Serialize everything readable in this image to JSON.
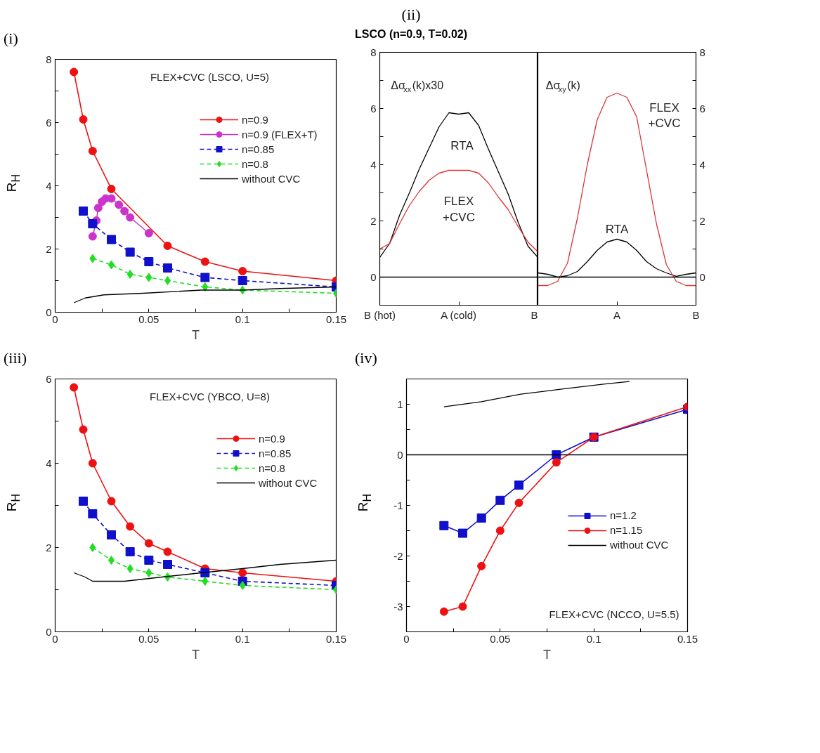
{
  "chart_data": [
    {
      "type": "line",
      "title": "(i)",
      "xlabel": "T",
      "ylabel": "R$_{H}$",
      "xlim": [
        0,
        0.15
      ],
      "ylim": [
        0,
        8
      ],
      "xticks": [
        0,
        {
          "value": 0.025,
          "label": null
        },
        0.05,
        {
          "value": 0.075,
          "label": null
        },
        0.1,
        {
          "value": 0.125,
          "label": null
        },
        0.15
      ],
      "yticks": [
        0,
        {
          "value": 1,
          "label": null
        },
        2,
        {
          "value": 3,
          "label": null
        },
        4,
        {
          "value": 5,
          "label": null
        },
        6,
        {
          "value": 7,
          "label": null
        },
        8
      ],
      "annotations": [
        "FLEX+CVC (LSCO, U=5)"
      ],
      "legend": "top right",
      "series": [
        {
          "name": "n=0.9",
          "color": "#ee1111",
          "marker": "circle",
          "line_style": "solid",
          "x": [
            0.01,
            0.015,
            0.02,
            0.03,
            0.06,
            0.08,
            0.1,
            0.15
          ],
          "values": [
            7.6,
            6.1,
            5.1,
            3.9,
            2.1,
            1.6,
            1.3,
            1.0
          ]
        },
        {
          "name": "n=0.9 (FLEX+T)",
          "color": "#cc33cc",
          "marker": "circle",
          "line_style": "solid",
          "x": [
            0.02,
            0.022,
            0.023,
            0.025,
            0.027,
            0.03,
            0.034,
            0.037,
            0.04,
            0.05
          ],
          "values": [
            2.4,
            2.9,
            3.3,
            3.5,
            3.6,
            3.6,
            3.4,
            3.2,
            3.0,
            2.5
          ]
        },
        {
          "name": "n=0.85",
          "color": "#1010cc",
          "marker": "square",
          "line_style": "dashed",
          "x": [
            0.015,
            0.02,
            0.03,
            0.04,
            0.05,
            0.06,
            0.08,
            0.1,
            0.15
          ],
          "values": [
            3.2,
            2.8,
            2.3,
            1.9,
            1.6,
            1.4,
            1.1,
            1.0,
            0.8
          ]
        },
        {
          "name": "n=0.8",
          "color": "#22dd22",
          "marker": "diamond",
          "line_style": "dashed",
          "x": [
            0.02,
            0.03,
            0.04,
            0.05,
            0.06,
            0.08,
            0.1,
            0.15
          ],
          "values": [
            1.7,
            1.5,
            1.2,
            1.1,
            1.0,
            0.8,
            0.7,
            0.6
          ]
        },
        {
          "name": "without CVC",
          "color": "#000000",
          "marker": "none",
          "line_style": "solid",
          "x": [
            0.01,
            0.016,
            0.026,
            0.047,
            0.078,
            0.1,
            0.12,
            0.15
          ],
          "values": [
            0.3,
            0.45,
            0.55,
            0.6,
            0.7,
            0.7,
            0.75,
            0.8
          ]
        }
      ]
    },
    {
      "type": "line",
      "title": "(ii)",
      "subtitle": "LSCO (n=0.9, T=0.02)",
      "ylim": [
        -1,
        8
      ],
      "categories": [
        "B (hot)",
        null,
        null,
        null,
        null,
        null,
        null,
        null,
        "A (cold)",
        null,
        null,
        null,
        null,
        null,
        null,
        null,
        "B"
      ],
      "yticks": [
        0,
        {
          "value": 1,
          "label": null
        },
        2,
        {
          "value": 3,
          "label": null
        },
        4,
        {
          "value": 5,
          "label": null
        },
        6,
        {
          "value": 7,
          "label": null
        },
        8
      ],
      "ref_lines": [
        {
          "axis": "y",
          "value": 0,
          "color": "#000000"
        }
      ],
      "annotations": [
        "Δσ$_{xx}$(k)x30",
        "RTA",
        "FLEX\n+CVC"
      ],
      "series": [
        {
          "color": "#000000",
          "values": [
            0.7,
            1.2,
            2.2,
            3.0,
            3.85,
            4.6,
            5.35,
            5.85,
            5.8,
            5.85,
            5.4,
            4.55,
            3.75,
            2.95,
            1.95,
            1.1,
            0.7
          ]
        },
        {
          "color": "#dd3333",
          "values": [
            1.0,
            1.2,
            1.9,
            2.55,
            3.05,
            3.45,
            3.7,
            3.8,
            3.8,
            3.8,
            3.7,
            3.35,
            2.85,
            2.4,
            1.8,
            1.25,
            0.9
          ]
        }
      ]
    },
    {
      "type": "line",
      "ylim": [
        -1,
        8
      ],
      "categories": [
        null,
        null,
        null,
        null,
        null,
        null,
        null,
        null,
        "A",
        null,
        null,
        null,
        null,
        null,
        null,
        null,
        "B"
      ],
      "yticks": [
        0,
        {
          "value": 1,
          "label": null
        },
        2,
        {
          "value": 3,
          "label": null
        },
        4,
        {
          "value": 5,
          "label": null
        },
        6,
        {
          "value": 7,
          "label": null
        },
        8
      ],
      "ref_lines": [
        {
          "axis": "y",
          "value": 0,
          "color": "#000000"
        }
      ],
      "annotations": [
        "Δσ$_{xy}$(k)",
        "FLEX\n+CVC",
        "RTA"
      ],
      "series": [
        {
          "color": "#000000",
          "values": [
            0.15,
            0.1,
            0.0,
            0.05,
            0.2,
            0.55,
            0.95,
            1.25,
            1.35,
            1.25,
            0.95,
            0.55,
            0.3,
            0.15,
            0.03,
            0.1,
            0.15
          ]
        },
        {
          "color": "#dd3333",
          "values": [
            -0.3,
            -0.3,
            -0.15,
            0.5,
            2.1,
            4.0,
            5.6,
            6.4,
            6.55,
            6.4,
            5.7,
            3.8,
            1.9,
            0.45,
            -0.15,
            -0.3,
            -0.3
          ]
        }
      ]
    },
    {
      "type": "line",
      "title": "(iii)",
      "xlabel": "T",
      "ylabel": "R$_{H}$",
      "xlim": [
        0,
        0.15
      ],
      "ylim": [
        0,
        6
      ],
      "xticks": [
        0,
        {
          "value": 0.025,
          "label": null
        },
        0.05,
        {
          "value": 0.075,
          "label": null
        },
        0.1,
        {
          "value": 0.125,
          "label": null
        },
        0.15
      ],
      "yticks": [
        0,
        {
          "value": 1,
          "label": null
        },
        2,
        {
          "value": 3,
          "label": null
        },
        4,
        {
          "value": 5,
          "label": null
        },
        6
      ],
      "annotations": [
        "FLEX+CVC (YBCO, U=8)"
      ],
      "legend": "top right",
      "series": [
        {
          "name": "n=0.9",
          "color": "#ee1111",
          "marker": "circle",
          "line_style": "solid",
          "x": [
            0.01,
            0.015,
            0.02,
            0.03,
            0.04,
            0.05,
            0.06,
            0.08,
            0.1,
            0.15
          ],
          "values": [
            5.8,
            4.8,
            4.0,
            3.1,
            2.5,
            2.1,
            1.9,
            1.5,
            1.4,
            1.2
          ]
        },
        {
          "name": "n=0.85",
          "color": "#1010cc",
          "marker": "square",
          "line_style": "dashed",
          "x": [
            0.015,
            0.02,
            0.03,
            0.04,
            0.05,
            0.06,
            0.08,
            0.1,
            0.15
          ],
          "values": [
            3.1,
            2.8,
            2.3,
            1.9,
            1.7,
            1.6,
            1.4,
            1.2,
            1.1
          ]
        },
        {
          "name": "n=0.8",
          "color": "#22dd22",
          "marker": "diamond",
          "line_style": "dashed",
          "x": [
            0.02,
            0.03,
            0.04,
            0.05,
            0.06,
            0.08,
            0.1,
            0.15
          ],
          "values": [
            2.0,
            1.7,
            1.5,
            1.4,
            1.3,
            1.2,
            1.1,
            1.0
          ]
        },
        {
          "name": "without CVC",
          "color": "#000000",
          "marker": "none",
          "line_style": "solid",
          "x": [
            0.01,
            0.016,
            0.02,
            0.037,
            0.057,
            0.078,
            0.1,
            0.12,
            0.15
          ],
          "values": [
            1.4,
            1.3,
            1.2,
            1.2,
            1.3,
            1.4,
            1.5,
            1.6,
            1.7
          ]
        }
      ]
    },
    {
      "type": "line",
      "title": "(iv)",
      "xlabel": "T",
      "ylabel": "R$_{H}$",
      "xlim": [
        0,
        0.15
      ],
      "ylim": [
        -3.5,
        1.5
      ],
      "xticks": [
        0,
        {
          "value": 0.025,
          "label": null
        },
        0.05,
        {
          "value": 0.075,
          "label": null
        },
        0.1,
        {
          "value": 0.125,
          "label": null
        },
        0.15
      ],
      "yticks": [
        {
          "value": -3.5,
          "label": null
        },
        -3,
        {
          "value": -2.5,
          "label": null
        },
        -2,
        {
          "value": -1.5,
          "label": null
        },
        -1,
        {
          "value": -0.5,
          "label": null
        },
        0,
        {
          "value": 0.5,
          "label": null
        },
        1,
        {
          "value": 1.5,
          "label": null
        }
      ],
      "ref_lines": [
        {
          "axis": "y",
          "value": 0,
          "color": "#000000"
        }
      ],
      "annotations": [
        "FLEX+CVC (NCCO, U=5.5)"
      ],
      "legend": "right",
      "series": [
        {
          "name": "n=1.2",
          "color": "#1010cc",
          "marker": "square",
          "line_style": "solid",
          "x": [
            0.02,
            0.03,
            0.04,
            0.05,
            0.06,
            0.08,
            0.1,
            0.15
          ],
          "values": [
            -1.4,
            -1.55,
            -1.25,
            -0.9,
            -0.6,
            0.0,
            0.35,
            0.9
          ]
        },
        {
          "name": "n=1.15",
          "color": "#ee1111",
          "marker": "circle",
          "line_style": "solid",
          "x": [
            0.02,
            0.03,
            0.04,
            0.05,
            0.06,
            0.08,
            0.1,
            0.15
          ],
          "values": [
            -3.1,
            -3.0,
            -2.2,
            -1.5,
            -0.95,
            -0.15,
            0.35,
            0.95
          ]
        },
        {
          "name": "without CVC",
          "color": "#000000",
          "marker": "none",
          "line_style": "solid",
          "x": [
            0.02,
            0.04,
            0.061,
            0.083,
            0.106,
            0.119
          ],
          "values": [
            0.95,
            1.05,
            1.2,
            1.3,
            1.4,
            1.45
          ]
        }
      ]
    }
  ]
}
